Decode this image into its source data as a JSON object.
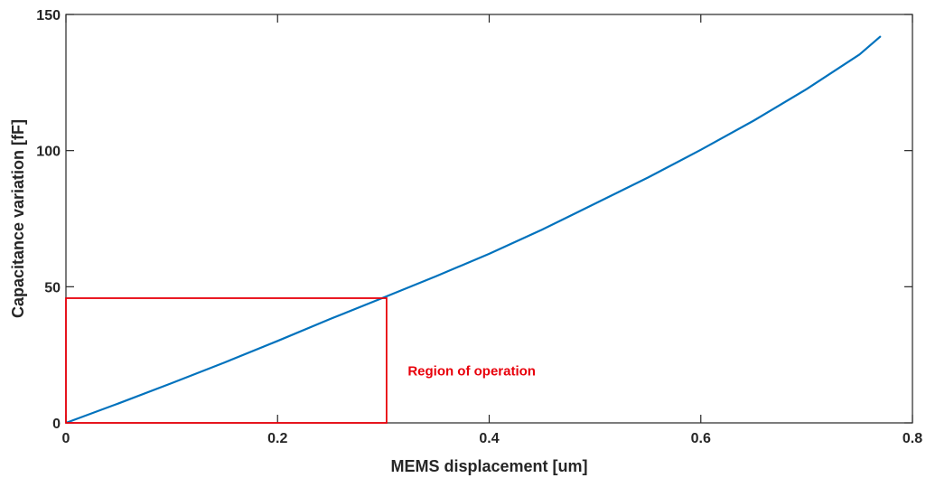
{
  "chart_data": {
    "type": "line",
    "xlabel": "MEMS displacement [um]",
    "ylabel": "Capacitance variation [fF]",
    "xlim": [
      0,
      0.8
    ],
    "ylim": [
      0,
      150
    ],
    "xticks": [
      0,
      0.2,
      0.4,
      0.6,
      0.8
    ],
    "xtick_labels": [
      "0",
      "0.2",
      "0.4",
      "0.6",
      "0.8"
    ],
    "yticks": [
      0,
      50,
      100,
      150
    ],
    "ytick_labels": [
      "0",
      "50",
      "100",
      "150"
    ],
    "grid": false,
    "series": [
      {
        "color": "#0072BD",
        "x": [
          0,
          0.05,
          0.1,
          0.15,
          0.2,
          0.25,
          0.3,
          0.35,
          0.4,
          0.45,
          0.5,
          0.55,
          0.6,
          0.65,
          0.7,
          0.75,
          0.77
        ],
        "y": [
          0,
          7.2,
          14.6,
          22.2,
          30.1,
          38.2,
          46.0,
          53.9,
          62.1,
          71.0,
          80.5,
          90.1,
          100.3,
          111.0,
          122.6,
          135.3,
          142.0
        ]
      }
    ],
    "annotations": [
      {
        "kind": "rectangle",
        "x0": 0,
        "y0": 0,
        "x1": 0.303,
        "y1": 45.8,
        "color": "#E8000B"
      },
      {
        "kind": "text",
        "text": "Region of operation",
        "x": 0.323,
        "y": 17.5,
        "color": "#E8000B"
      }
    ]
  }
}
